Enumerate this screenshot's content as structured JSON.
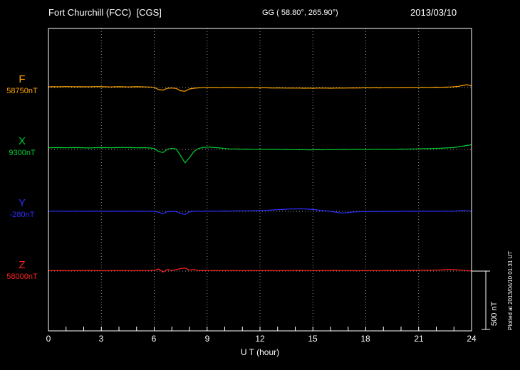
{
  "chart_data": {
    "type": "line",
    "title": "Fort Churchill (FCC)  [CGS]",
    "subtitle": "GG ( 58.80°, 265.90°)",
    "date": "2013/03/10",
    "xlabel": "U T (hour)",
    "xlim": [
      0,
      24
    ],
    "x_ticks": [
      0,
      3,
      6,
      9,
      12,
      15,
      18,
      21,
      24
    ],
    "x_step_hours": 0.25,
    "grid": "dotted vertical gridlines every 3 hours; dotted horizontal baseline per component",
    "scale_bar": {
      "label": "500 nT",
      "nT": 500
    },
    "annotations": {
      "plotted_at": "Plotted at 2013/04/10 01:31 UT"
    },
    "series": [
      {
        "name": "F",
        "baseline_label": "58750nT",
        "baseline_nT": 58750,
        "color": "#FFA500",
        "offsets_nT": [
          6,
          7,
          6,
          7,
          8,
          7,
          6,
          7,
          6,
          6,
          7,
          8,
          7,
          6,
          5,
          6,
          7,
          6,
          5,
          6,
          7,
          6,
          5,
          4,
          2,
          -18,
          -22,
          -6,
          -4,
          -8,
          -28,
          -32,
          -12,
          -6,
          -3,
          -2,
          0,
          1,
          0,
          -1,
          0,
          1,
          0,
          -1,
          -2,
          -1,
          0,
          -2,
          -3,
          -2,
          -3,
          -4,
          -3,
          -4,
          -5,
          -4,
          -5,
          -5,
          -6,
          -5,
          -6,
          -5,
          -4,
          -5,
          -6,
          -5,
          -4,
          -5,
          -4,
          -3,
          -4,
          -3,
          -2,
          -3,
          -2,
          -3,
          -2,
          -1,
          -2,
          -1,
          0,
          0,
          1,
          0,
          1,
          2,
          1,
          2,
          3,
          2,
          3,
          4,
          6,
          10,
          18,
          24,
          14
        ]
      },
      {
        "name": "X",
        "baseline_label": "9300nT",
        "baseline_nT": 9300,
        "color": "#00CC33",
        "offsets_nT": [
          14,
          15,
          16,
          15,
          14,
          15,
          16,
          15,
          14,
          13,
          14,
          15,
          16,
          15,
          14,
          15,
          16,
          17,
          16,
          15,
          14,
          15,
          14,
          13,
          8,
          -18,
          -26,
          2,
          10,
          4,
          -55,
          -115,
          -70,
          -18,
          8,
          16,
          20,
          18,
          15,
          12,
          8,
          5,
          4,
          3,
          2,
          3,
          2,
          1,
          2,
          1,
          0,
          1,
          0,
          -1,
          0,
          -2,
          -1,
          -3,
          -2,
          -4,
          -3,
          -2,
          -3,
          -2,
          -1,
          -2,
          -1,
          0,
          -1,
          0,
          1,
          0,
          -1,
          0,
          1,
          2,
          1,
          0,
          1,
          2,
          3,
          2,
          3,
          4,
          5,
          6,
          7,
          8,
          9,
          10,
          12,
          14,
          16,
          22,
          28,
          34,
          40
        ]
      },
      {
        "name": "Y",
        "baseline_label": "-280nT",
        "baseline_nT": -280,
        "color": "#2E2EFF",
        "offsets_nT": [
          2,
          1,
          2,
          1,
          0,
          1,
          2,
          1,
          0,
          1,
          2,
          1,
          0,
          -1,
          0,
          1,
          0,
          -1,
          0,
          1,
          0,
          -1,
          0,
          1,
          0,
          -8,
          -22,
          -2,
          0,
          -2,
          -18,
          -26,
          -4,
          0,
          1,
          0,
          1,
          2,
          1,
          2,
          3,
          2,
          3,
          4,
          3,
          4,
          5,
          6,
          7,
          8,
          10,
          12,
          14,
          16,
          18,
          20,
          21,
          22,
          21,
          19,
          16,
          12,
          8,
          4,
          0,
          -6,
          -12,
          -14,
          -10,
          -6,
          -4,
          -2,
          -2,
          -1,
          -2,
          -1,
          0,
          -1,
          0,
          -1,
          0,
          1,
          0,
          -1,
          0,
          1,
          0,
          1,
          0,
          1,
          2,
          1,
          2,
          4,
          6,
          4,
          2
        ]
      },
      {
        "name": "Z",
        "baseline_label": "58000nT",
        "baseline_nT": 58000,
        "color": "#FF2222",
        "offsets_nT": [
          4,
          5,
          4,
          5,
          4,
          3,
          4,
          5,
          4,
          5,
          4,
          5,
          4,
          3,
          4,
          5,
          4,
          5,
          4,
          3,
          4,
          5,
          4,
          5,
          6,
          18,
          -8,
          14,
          6,
          12,
          22,
          26,
          8,
          14,
          4,
          6,
          5,
          4,
          5,
          4,
          5,
          4,
          5,
          4,
          3,
          4,
          5,
          4,
          5,
          4,
          5,
          4,
          3,
          4,
          5,
          4,
          5,
          6,
          5,
          4,
          5,
          4,
          5,
          4,
          5,
          6,
          5,
          4,
          5,
          4,
          3,
          4,
          5,
          4,
          5,
          4,
          5,
          6,
          5,
          6,
          5,
          6,
          7,
          6,
          7,
          8,
          7,
          8,
          9,
          10,
          12,
          14,
          12,
          10,
          8,
          4,
          0
        ]
      }
    ]
  }
}
